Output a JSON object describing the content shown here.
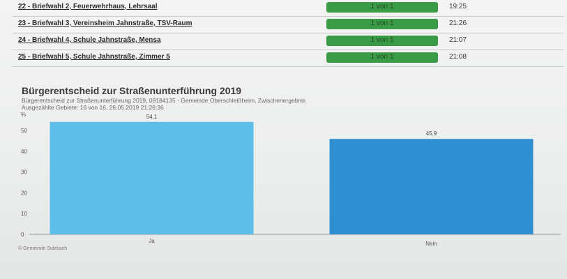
{
  "results_table": {
    "rows": [
      {
        "label": "22 - Briefwahl 2, Feuerwehrhaus, Lehrsaal",
        "progress_text": "1 von 1",
        "progress_fraction": 1,
        "time": "19:25"
      },
      {
        "label": "23 - Briefwahl 3, Vereinsheim Jahnstraße, TSV-Raum",
        "progress_text": "1 von 1",
        "progress_fraction": 1,
        "time": "21:26"
      },
      {
        "label": "24 - Briefwahl 4, Schule Jahnstraße, Mensa",
        "progress_text": "1 von 1",
        "progress_fraction": 1,
        "time": "21:07"
      },
      {
        "label": "25 - Briefwahl 5, Schule Jahnstraße, Zimmer 5",
        "progress_text": "1 von 1",
        "progress_fraction": 1,
        "time": "21:08"
      }
    ]
  },
  "chart_panel": {
    "title": "Bürgerentscheid zur Straßenunterführung 2019",
    "subtitle": "Bürgerentscheid zur Straßenunterführung 2019, 09184135 - Gemeinde Oberschleißheim, Zwischenergebnis",
    "status": "Ausgezählte Gebiete: 16 von 16, 26.05.2019 21:26:36",
    "credit": "© Gemeinde Sulzbach"
  },
  "colors": {
    "progress_green": "#3a9a45",
    "bar_ja": "#5bbde8",
    "bar_nein": "#2f8fd0"
  },
  "chart_data": {
    "type": "bar",
    "title": "Bürgerentscheid zur Straßenunterführung 2019",
    "ylabel": "%",
    "xlabel": "",
    "categories": [
      "Ja",
      "Nein"
    ],
    "values": [
      54.1,
      45.9
    ],
    "data_labels": [
      "54,1",
      "45,9"
    ],
    "yticks": [
      "0",
      "10",
      "20",
      "30",
      "40",
      "50"
    ],
    "ylim": [
      0,
      55
    ],
    "grid": false,
    "legend": "none"
  }
}
